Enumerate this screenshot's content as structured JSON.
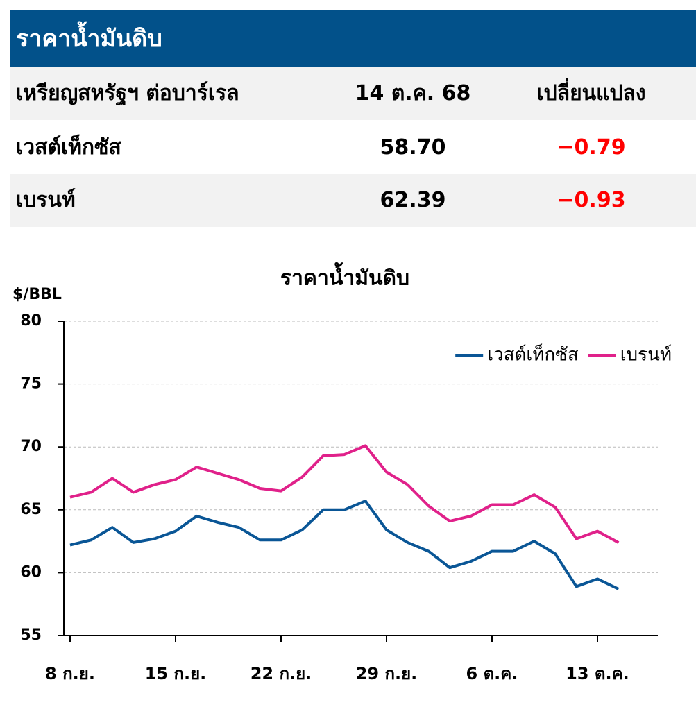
{
  "table": {
    "title": "ราคาน้ำมันดิบ",
    "header": [
      "เหรียญสหรัฐฯ ต่อบาร์เรล",
      "14 ต.ค. 68",
      "เปลี่ยนแปลง"
    ],
    "rows": [
      [
        "เวสต์เท็กซัส",
        "58.70",
        "−0.79"
      ],
      [
        "เบรนท์",
        "62.39",
        "−0.93"
      ]
    ]
  },
  "chart_data": {
    "type": "line",
    "title": "ราคาน้ำมันดิบ",
    "y_label": "$/BBL",
    "categories": [
      "8 ก.ย.",
      null,
      null,
      null,
      null,
      "15 ก.ย.",
      null,
      null,
      null,
      null,
      "22 ก.ย.",
      null,
      null,
      null,
      null,
      "29 ก.ย.",
      null,
      null,
      null,
      null,
      "6 ต.ค.",
      null,
      null,
      null,
      null,
      "13 ต.ค.",
      null
    ],
    "series": [
      {
        "name": "เวสต์เท็กซัส",
        "color": "#0a5696",
        "values": [
          62.2,
          62.6,
          63.6,
          62.4,
          62.7,
          63.3,
          64.5,
          64.0,
          63.6,
          62.6,
          62.6,
          63.4,
          65.0,
          65.0,
          65.7,
          63.4,
          62.4,
          61.7,
          60.4,
          60.9,
          61.7,
          61.7,
          62.5,
          61.5,
          58.9,
          59.5,
          58.7
        ]
      },
      {
        "name": "เบรนท์",
        "color": "#e0218a",
        "values": [
          66.0,
          66.4,
          67.5,
          66.4,
          67.0,
          67.4,
          68.4,
          67.9,
          67.4,
          66.7,
          66.5,
          67.6,
          69.3,
          69.4,
          70.1,
          68.0,
          67.0,
          65.3,
          64.1,
          64.5,
          65.4,
          65.4,
          66.2,
          65.2,
          62.7,
          63.3,
          62.39
        ]
      }
    ],
    "ylim": [
      55,
      80
    ],
    "yticks": [
      55,
      60,
      65,
      70,
      75,
      80
    ],
    "grid": true,
    "legend": "top-right"
  }
}
